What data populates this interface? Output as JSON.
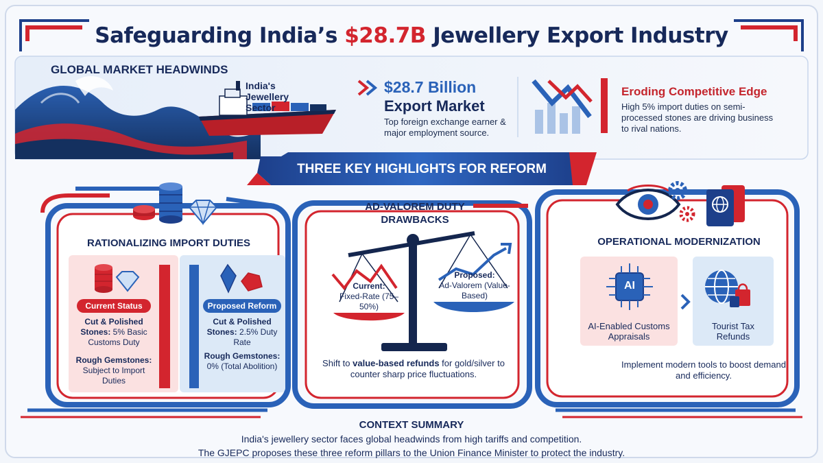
{
  "title": {
    "prefix": "Safeguarding India’s ",
    "accent": "$28.7B",
    "suffix": " Jewellery Export Industry"
  },
  "headwinds": {
    "title": "GLOBAL MARKET HEADWINDS",
    "ship_label": "India's Jewellery Sector"
  },
  "export_stat": {
    "value": "$28.7 Billion",
    "label": "Export Market",
    "description": "Top foreign exchange earner & major employment source."
  },
  "competitive_edge": {
    "title": "Eroding Competitive Edge",
    "description": "High 5% import duties on semi-processed stones are driving business to rival nations."
  },
  "banner": "THREE KEY HIGHLIGHTS FOR REFORM",
  "import_duties": {
    "title": "RATIONALIZING IMPORT DUTIES",
    "current": {
      "badge": "Current Status",
      "line1_bold": "Cut & Polished Stones:",
      "line1_rest": " 5% Basic Customs Duty",
      "line2_bold": "Rough Gemstones:",
      "line2_rest": " Subject to Import Duties"
    },
    "proposed": {
      "badge": "Proposed Reform",
      "line1_bold": "Cut & Polished Stones:",
      "line1_rest": " 2.5% Duty Rate",
      "line2_bold": "Rough Gemstones:",
      "line2_rest": " 0% (Total Abolition)"
    }
  },
  "drawbacks": {
    "title": "AD-VALOREM DUTY DRAWBACKS",
    "current_bold": "Current:",
    "current_rest": "Fixed-Rate (75–50%)",
    "proposed_bold": "Proposed:",
    "proposed_rest": "Ad-Valorem (Value-Based)",
    "caption_pre": "Shift to ",
    "caption_bold": "value-based refunds",
    "caption_post": " for gold/silver to counter sharp price fluctuations."
  },
  "modernization": {
    "title": "OPERATIONAL MODERNIZATION",
    "ai_chip": "AI",
    "ai_label": "AI-Enabled Customs Appraisals",
    "tourist_label": "Tourist Tax Refunds",
    "caption": "Implement modern tools to boost demand and efficiency."
  },
  "context": {
    "title": "CONTEXT SUMMARY",
    "line1": "India's jewellery sector faces global headwinds from high tariffs and competition.",
    "line2": "The GJEPC proposes these three reform pillars to the Union Finance Minister to protect the industry."
  },
  "colors": {
    "navy": "#17295a",
    "blue": "#2a62b8",
    "red": "#d3252e",
    "light_blue": "#dce9f7",
    "light_red": "#fbe1e1"
  },
  "icons": [
    "waves-icon",
    "ship-icon",
    "double-chevron-icon",
    "declining-chart-icon",
    "coins-icon",
    "diamond-icon",
    "gemstone-icon",
    "balance-scale-icon",
    "eye-icon",
    "gears-icon",
    "passport-icon",
    "ai-chip-icon",
    "globe-shopping-icon"
  ]
}
